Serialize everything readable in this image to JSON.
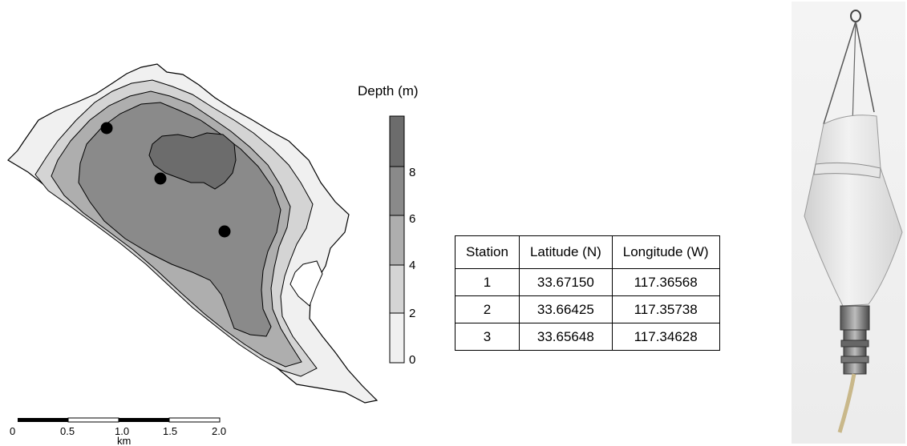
{
  "map": {
    "legend_title": "Depth (m)",
    "legend_ticks": [
      "8",
      "6",
      "4",
      "2",
      "0"
    ],
    "depth_colors": [
      "#f0f0f0",
      "#d4d4d4",
      "#aeaeae",
      "#8a8a8a",
      "#6c6c6c"
    ],
    "stations_plotted": 3,
    "scale": {
      "ticks": [
        "0",
        "0.5",
        "1.0",
        "1.5",
        "2.0"
      ],
      "unit": "km"
    }
  },
  "stations_table": {
    "headers": [
      "Station",
      "Latitude (N)",
      "Longitude (W)"
    ],
    "rows": [
      [
        "1",
        "33.67150",
        "117.36568"
      ],
      [
        "2",
        "33.66425",
        "117.35738"
      ],
      [
        "3",
        "33.65648",
        "117.34628"
      ]
    ]
  },
  "photo": {
    "subject": "plankton-net"
  }
}
